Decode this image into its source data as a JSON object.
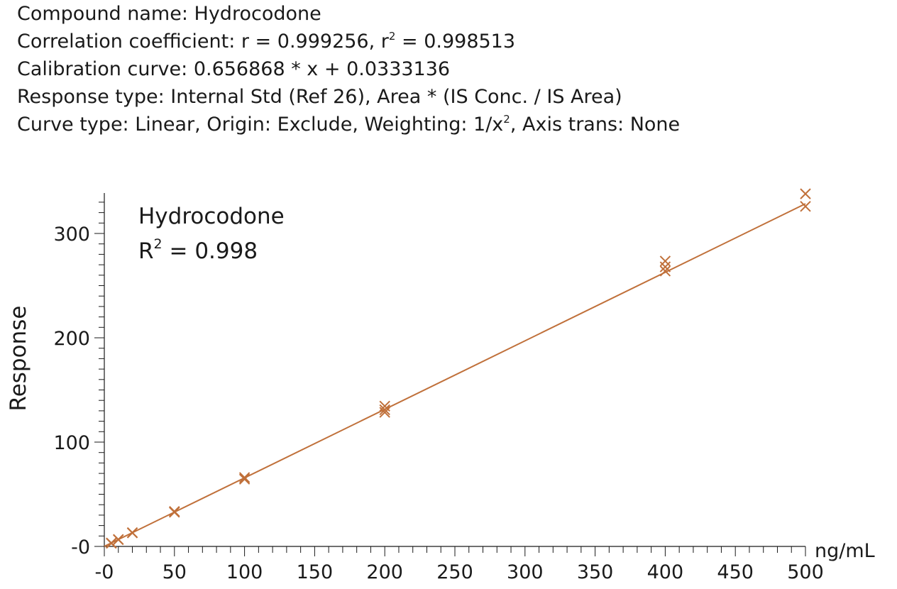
{
  "header": {
    "compound": "Compound name: Hydrocodone",
    "correlation_prefix": "Correlation coefficient: r = 0.999256, r",
    "correlation_sup": "2",
    "correlation_suffix": " = 0.998513",
    "calibration": "Calibration curve: 0.656868 * x + 0.0333136",
    "response_type": "Response type: Internal Std (Ref 26), Area * (IS Conc. / IS Area)",
    "curve_prefix": "Curve type: Linear, Origin: Exclude, Weighting: 1/x",
    "curve_sup": "2",
    "curve_suffix": ", Axis trans: None"
  },
  "colors": {
    "series": "#c0703a",
    "axis": "#1a1a1a",
    "text": "#1a1a1a"
  },
  "chart_data": {
    "type": "scatter",
    "title": "",
    "annotation": {
      "compound": "Hydrocodone",
      "r2_prefix": "R",
      "r2_sup": "2",
      "r2_value": " = 0.998"
    },
    "xlabel": "ng/mL",
    "ylabel": "Response",
    "xlim": [
      0,
      500
    ],
    "ylim": [
      0,
      340
    ],
    "xticks": [
      0,
      50,
      100,
      150,
      200,
      250,
      300,
      350,
      400,
      450,
      500
    ],
    "xtick_labels": [
      "-0",
      "50",
      "100",
      "150",
      "200",
      "250",
      "300",
      "350",
      "400",
      "450",
      "500"
    ],
    "yticks": [
      0,
      100,
      200,
      300
    ],
    "ytick_labels": [
      "-0",
      "100",
      "200",
      "300"
    ],
    "fit": {
      "slope": 0.656868,
      "intercept": 0.0333136,
      "x_range": [
        0,
        500
      ]
    },
    "series": [
      {
        "marker": "x",
        "points": [
          [
            5,
            3.3
          ],
          [
            5,
            3.0
          ],
          [
            10,
            6.5
          ],
          [
            10,
            6.7
          ],
          [
            20,
            13.0
          ],
          [
            20,
            13.2
          ],
          [
            50,
            32.8
          ],
          [
            50,
            33.5
          ],
          [
            100,
            64.5
          ],
          [
            100,
            66.0
          ],
          [
            200,
            128.5
          ],
          [
            200,
            131.0
          ],
          [
            200,
            134.5
          ],
          [
            400,
            264.0
          ],
          [
            400,
            268.0
          ],
          [
            400,
            273.5
          ],
          [
            500,
            326.0
          ],
          [
            500,
            338.0
          ]
        ]
      }
    ],
    "grid": false,
    "legend": "none"
  }
}
